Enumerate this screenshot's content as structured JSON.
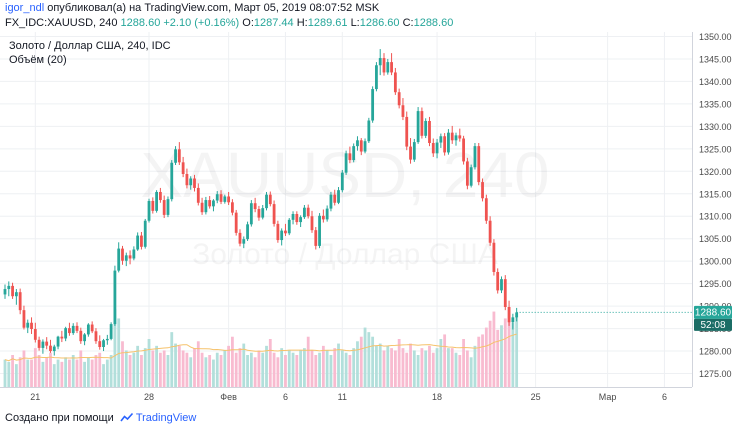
{
  "header": {
    "username": "igor_ndl",
    "published_text": "опубликовал(а) на TradingView.com, Март 05, 2019 08:07:52 MSK",
    "symbol": "FX_IDC:XAUUSD, 240",
    "last": "1288.60",
    "change": "+2.10 (+0.16%)",
    "o_label": "O:",
    "o_value": "1287.44",
    "h_label": "H:",
    "h_value": "1289.61",
    "l_label": "L:",
    "l_value": "1286.60",
    "c_label": "C:",
    "c_value": "1288.60"
  },
  "legend": {
    "series_title": "Золото / Доллар США, 240, IDC",
    "indicator": "Объём (20)"
  },
  "watermark": {
    "symbol": "XAUUSD, 240",
    "description": "Золото / Доллар США"
  },
  "badges": {
    "price": "1288.60",
    "countdown": "52:08"
  },
  "footer": {
    "prefix": "Создано при помощи",
    "brand": "TradingView"
  },
  "colors": {
    "up": "#26a69a",
    "down": "#ef5350",
    "volume_up": "#b2dfdb",
    "volume_down": "#f8bbd0",
    "volume_ma": "#f6c26b",
    "grid": "#eef0f3",
    "axis_text": "#4a4a4a",
    "badge_price": "#26a69a",
    "badge_timer": "#1b6d66"
  },
  "chart_data": {
    "type": "candlestick",
    "ylim": [
      1272,
      1351
    ],
    "y_ticks": [
      1275,
      1280,
      1285,
      1290,
      1295,
      1300,
      1305,
      1310,
      1315,
      1320,
      1325,
      1330,
      1335,
      1340,
      1345,
      1350
    ],
    "x_ticks": [
      {
        "label": "21",
        "i": 8
      },
      {
        "label": "28",
        "i": 38
      },
      {
        "label": "Фев",
        "i": 59
      },
      {
        "label": "6",
        "i": 74
      },
      {
        "label": "11",
        "i": 89
      },
      {
        "label": "18",
        "i": 114
      },
      {
        "label": "25",
        "i": 140
      },
      {
        "label": "Мар",
        "i": 159
      },
      {
        "label": "6",
        "i": 174
      }
    ],
    "last_price": 1288.6,
    "candles": [
      [
        1292.6,
        1294.8,
        1291.6,
        1293.8
      ],
      [
        1293.8,
        1295.5,
        1292.2,
        1294.5
      ],
      [
        1294.5,
        1295.2,
        1291.6,
        1292.2
      ],
      [
        1292.2,
        1293.8,
        1290.3,
        1293.1
      ],
      [
        1293.1,
        1293.9,
        1288.2,
        1289.1
      ],
      [
        1289.1,
        1290.1,
        1284.8,
        1285.2
      ],
      [
        1285.2,
        1287.0,
        1284.0,
        1286.3
      ],
      [
        1286.3,
        1287.5,
        1283.8,
        1284.9
      ],
      [
        1284.9,
        1286.3,
        1281.9,
        1282.5
      ],
      [
        1282.5,
        1283.2,
        1280.1,
        1280.7
      ],
      [
        1280.7,
        1282.6,
        1279.4,
        1282.1
      ],
      [
        1282.1,
        1283.1,
        1280.4,
        1281.2
      ],
      [
        1281.2,
        1282.5,
        1279.6,
        1280.0
      ],
      [
        1280.0,
        1281.4,
        1279.0,
        1281.0
      ],
      [
        1281.0,
        1283.4,
        1280.4,
        1283.2
      ],
      [
        1283.2,
        1284.5,
        1282.0,
        1282.8
      ],
      [
        1282.8,
        1285.4,
        1282.2,
        1285.1
      ],
      [
        1285.1,
        1286.3,
        1283.4,
        1284.0
      ],
      [
        1284.0,
        1286.2,
        1283.6,
        1285.6
      ],
      [
        1285.6,
        1286.4,
        1284.0,
        1284.5
      ],
      [
        1284.5,
        1285.2,
        1281.6,
        1282.2
      ],
      [
        1282.2,
        1284.0,
        1281.3,
        1283.7
      ],
      [
        1283.7,
        1286.2,
        1283.2,
        1285.9
      ],
      [
        1285.9,
        1286.6,
        1284.0,
        1284.4
      ],
      [
        1284.4,
        1285.1,
        1281.6,
        1282.2
      ],
      [
        1282.2,
        1283.5,
        1280.3,
        1280.9
      ],
      [
        1280.9,
        1282.7,
        1280.0,
        1282.4
      ],
      [
        1282.4,
        1283.6,
        1281.4,
        1282.7
      ],
      [
        1282.7,
        1286.4,
        1282.4,
        1286.0
      ],
      [
        1286.0,
        1299.0,
        1285.6,
        1297.9
      ],
      [
        1297.9,
        1304.2,
        1297.5,
        1302.8
      ],
      [
        1302.8,
        1303.4,
        1299.2,
        1300.1
      ],
      [
        1300.1,
        1301.9,
        1298.9,
        1301.3
      ],
      [
        1301.3,
        1302.4,
        1299.3,
        1300.6
      ],
      [
        1300.6,
        1303.3,
        1300.2,
        1302.6
      ],
      [
        1302.6,
        1306.4,
        1302.3,
        1305.7
      ],
      [
        1305.7,
        1306.5,
        1302.6,
        1303.2
      ],
      [
        1303.2,
        1309.4,
        1302.8,
        1309.0
      ],
      [
        1309.0,
        1313.9,
        1308.6,
        1313.4
      ],
      [
        1313.4,
        1314.2,
        1310.6,
        1311.2
      ],
      [
        1311.2,
        1315.8,
        1310.8,
        1315.4
      ],
      [
        1315.4,
        1316.3,
        1313.0,
        1313.6
      ],
      [
        1313.6,
        1314.6,
        1309.6,
        1310.3
      ],
      [
        1310.3,
        1314.4,
        1309.8,
        1313.8
      ],
      [
        1313.8,
        1322.5,
        1313.3,
        1321.9
      ],
      [
        1321.9,
        1325.6,
        1321.4,
        1324.9
      ],
      [
        1324.9,
        1326.5,
        1321.4,
        1322.0
      ],
      [
        1322.0,
        1323.2,
        1318.7,
        1319.4
      ],
      [
        1319.4,
        1320.6,
        1316.2,
        1316.9
      ],
      [
        1316.9,
        1318.9,
        1315.9,
        1318.4
      ],
      [
        1318.4,
        1319.2,
        1315.5,
        1316.3
      ],
      [
        1316.3,
        1317.3,
        1312.4,
        1313.0
      ],
      [
        1313.0,
        1314.1,
        1310.3,
        1310.9
      ],
      [
        1310.9,
        1314.3,
        1310.4,
        1313.6
      ],
      [
        1313.6,
        1314.5,
        1311.7,
        1312.2
      ],
      [
        1312.2,
        1313.8,
        1311.1,
        1313.5
      ],
      [
        1313.5,
        1315.6,
        1312.9,
        1314.9
      ],
      [
        1314.9,
        1315.8,
        1312.7,
        1313.2
      ],
      [
        1313.2,
        1314.8,
        1312.8,
        1314.4
      ],
      [
        1314.4,
        1315.4,
        1312.5,
        1313.1
      ],
      [
        1313.1,
        1313.8,
        1310.2,
        1310.8
      ],
      [
        1310.8,
        1311.4,
        1305.7,
        1306.3
      ],
      [
        1306.3,
        1307.1,
        1303.3,
        1303.9
      ],
      [
        1303.9,
        1305.5,
        1302.9,
        1304.9
      ],
      [
        1304.9,
        1308.8,
        1304.5,
        1308.2
      ],
      [
        1308.2,
        1313.6,
        1307.7,
        1312.9
      ],
      [
        1312.9,
        1314.1,
        1310.9,
        1311.6
      ],
      [
        1311.6,
        1312.3,
        1309.0,
        1309.7
      ],
      [
        1309.7,
        1312.5,
        1309.3,
        1311.8
      ],
      [
        1311.8,
        1315.4,
        1311.3,
        1314.8
      ],
      [
        1314.8,
        1315.5,
        1312.2,
        1312.7
      ],
      [
        1312.7,
        1313.5,
        1307.7,
        1308.3
      ],
      [
        1308.3,
        1309.0,
        1304.1,
        1304.7
      ],
      [
        1304.7,
        1307.3,
        1303.5,
        1306.8
      ],
      [
        1306.8,
        1308.3,
        1305.6,
        1306.2
      ],
      [
        1306.2,
        1309.6,
        1305.8,
        1309.2
      ],
      [
        1309.2,
        1311.1,
        1308.2,
        1310.5
      ],
      [
        1310.5,
        1311.1,
        1308.1,
        1308.7
      ],
      [
        1308.7,
        1310.2,
        1307.6,
        1309.8
      ],
      [
        1309.8,
        1312.5,
        1309.4,
        1311.9
      ],
      [
        1311.9,
        1312.6,
        1309.5,
        1310.0
      ],
      [
        1310.0,
        1311.2,
        1306.3,
        1306.9
      ],
      [
        1306.9,
        1307.6,
        1302.6,
        1303.4
      ],
      [
        1303.4,
        1310.7,
        1302.9,
        1310.1
      ],
      [
        1310.1,
        1311.5,
        1308.6,
        1309.3
      ],
      [
        1309.3,
        1312.4,
        1308.8,
        1311.7
      ],
      [
        1311.7,
        1315.4,
        1311.1,
        1314.8
      ],
      [
        1314.8,
        1315.9,
        1312.4,
        1313.0
      ],
      [
        1313.0,
        1316.5,
        1312.7,
        1315.8
      ],
      [
        1315.8,
        1320.3,
        1315.3,
        1319.7
      ],
      [
        1319.7,
        1324.6,
        1319.2,
        1324.0
      ],
      [
        1324.0,
        1325.5,
        1321.8,
        1322.5
      ],
      [
        1322.5,
        1326.2,
        1322.0,
        1325.6
      ],
      [
        1325.6,
        1327.8,
        1324.6,
        1326.9
      ],
      [
        1326.9,
        1327.4,
        1323.6,
        1324.4
      ],
      [
        1324.4,
        1327.3,
        1324.0,
        1326.7
      ],
      [
        1326.7,
        1331.9,
        1326.3,
        1331.3
      ],
      [
        1331.3,
        1338.9,
        1330.8,
        1338.3
      ],
      [
        1338.3,
        1344.3,
        1337.8,
        1343.6
      ],
      [
        1343.6,
        1347.2,
        1341.4,
        1345.2
      ],
      [
        1345.2,
        1346.3,
        1341.3,
        1342.0
      ],
      [
        1342.0,
        1345.0,
        1341.5,
        1344.3
      ],
      [
        1344.3,
        1346.3,
        1341.4,
        1342.0
      ],
      [
        1342.0,
        1343.0,
        1337.0,
        1337.6
      ],
      [
        1337.6,
        1338.4,
        1334.0,
        1334.7
      ],
      [
        1334.7,
        1336.3,
        1331.4,
        1332.1
      ],
      [
        1332.1,
        1333.3,
        1324.7,
        1325.5
      ],
      [
        1325.5,
        1327.4,
        1321.7,
        1322.6
      ],
      [
        1322.6,
        1327.2,
        1322.1,
        1326.5
      ],
      [
        1326.5,
        1334.3,
        1326.1,
        1333.4
      ],
      [
        1333.4,
        1334.2,
        1327.3,
        1327.9
      ],
      [
        1327.9,
        1331.8,
        1327.4,
        1331.2
      ],
      [
        1331.2,
        1332.1,
        1325.6,
        1326.3
      ],
      [
        1326.3,
        1327.3,
        1323.2,
        1324.0
      ],
      [
        1324.0,
        1327.2,
        1322.9,
        1326.4
      ],
      [
        1326.4,
        1328.4,
        1325.2,
        1327.8
      ],
      [
        1327.8,
        1328.5,
        1323.5,
        1324.2
      ],
      [
        1324.2,
        1329.4,
        1323.7,
        1328.6
      ],
      [
        1328.6,
        1330.1,
        1326.1,
        1326.9
      ],
      [
        1326.9,
        1328.6,
        1325.7,
        1328.0
      ],
      [
        1328.0,
        1329.5,
        1326.6,
        1327.3
      ],
      [
        1327.3,
        1327.9,
        1321.5,
        1322.2
      ],
      [
        1322.2,
        1323.0,
        1316.0,
        1316.8
      ],
      [
        1316.8,
        1321.5,
        1316.4,
        1320.9
      ],
      [
        1320.9,
        1326.3,
        1320.4,
        1325.6
      ],
      [
        1325.6,
        1326.3,
        1316.9,
        1317.6
      ],
      [
        1317.6,
        1318.4,
        1313.3,
        1314.0
      ],
      [
        1314.0,
        1314.8,
        1308.3,
        1309.0
      ],
      [
        1309.0,
        1310.0,
        1303.4,
        1304.1
      ],
      [
        1304.1,
        1304.9,
        1296.8,
        1297.6
      ],
      [
        1297.6,
        1298.4,
        1292.8,
        1293.5
      ],
      [
        1293.5,
        1296.6,
        1292.9,
        1296.0
      ],
      [
        1296.0,
        1296.9,
        1289.1,
        1289.8
      ],
      [
        1289.8,
        1291.2,
        1285.6,
        1286.4
      ],
      [
        1286.4,
        1288.3,
        1284.8,
        1287.5
      ],
      [
        1287.5,
        1289.6,
        1286.6,
        1288.6
      ]
    ],
    "volume": [
      12,
      11,
      14,
      10,
      13,
      16,
      12,
      12,
      17,
      14,
      11,
      13,
      15,
      10,
      12,
      11,
      13,
      12,
      14,
      12,
      16,
      11,
      13,
      12,
      14,
      15,
      10,
      12,
      14,
      34,
      30,
      20,
      16,
      14,
      15,
      18,
      14,
      17,
      21,
      16,
      18,
      15,
      16,
      14,
      24,
      19,
      18,
      16,
      15,
      13,
      17,
      20,
      15,
      13,
      14,
      12,
      15,
      14,
      16,
      18,
      22,
      15,
      17,
      19,
      14,
      15,
      13,
      16,
      15,
      18,
      21,
      15,
      13,
      17,
      14,
      16,
      15,
      14,
      16,
      17,
      22,
      16,
      14,
      15,
      18,
      16,
      14,
      17,
      19,
      16,
      15,
      14,
      17,
      20,
      22,
      26,
      24,
      22,
      18,
      19,
      16,
      18,
      17,
      16,
      21,
      17,
      15,
      19,
      16,
      14,
      17,
      16,
      18,
      15,
      17,
      21,
      23,
      17,
      17,
      15,
      14,
      21,
      16,
      13,
      18,
      22,
      23,
      26,
      29,
      33,
      25,
      27,
      30,
      35,
      28,
      31
    ]
  }
}
